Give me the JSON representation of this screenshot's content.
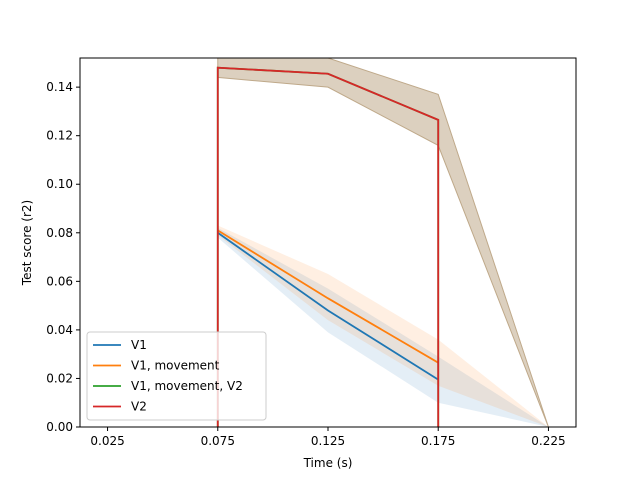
{
  "chart_data": {
    "type": "line",
    "title": "",
    "xlabel": "Time (s)",
    "ylabel": "Test score (r2)",
    "xlim": [
      0.0125,
      0.2375
    ],
    "ylim": [
      0.0,
      0.152
    ],
    "xticks": [
      0.025,
      0.075,
      0.125,
      0.175,
      0.225
    ],
    "xtick_labels": [
      "0.025",
      "0.075",
      "0.125",
      "0.175",
      "0.225"
    ],
    "yticks": [
      0.0,
      0.02,
      0.04,
      0.06,
      0.08,
      0.1,
      0.12,
      0.14
    ],
    "ytick_labels": [
      "0.00",
      "0.02",
      "0.04",
      "0.06",
      "0.08",
      "0.10",
      "0.12",
      "0.14"
    ],
    "grid": false,
    "legend_position": "lower-left",
    "series": [
      {
        "name": "V1",
        "color": "#1f77b4",
        "x": [
          0.075,
          0.125,
          0.175
        ],
        "y": [
          0.08,
          0.048,
          0.0195
        ],
        "band_x": [
          0.075,
          0.125,
          0.175,
          0.225
        ],
        "band_lower": [
          0.078,
          0.039,
          0.01,
          0.0
        ],
        "band_upper": [
          0.082,
          0.057,
          0.029,
          0.0
        ]
      },
      {
        "name": "V1, movement",
        "color": "#ff7f0e",
        "x": [
          0.075,
          0.125,
          0.175
        ],
        "y": [
          0.081,
          0.053,
          0.0265
        ],
        "band_x": [
          0.075,
          0.125,
          0.175,
          0.225
        ],
        "band_lower": [
          0.079,
          0.044,
          0.017,
          0.0
        ],
        "band_upper": [
          0.083,
          0.063,
          0.036,
          0.0
        ]
      },
      {
        "name": "V1, movement, V2",
        "color": "#2ca02c",
        "x": [
          0.075,
          0.075,
          0.125,
          0.175,
          0.175
        ],
        "y": [
          0.0,
          0.148,
          0.1455,
          0.1265,
          0.0
        ],
        "band_x": [],
        "band_lower": [],
        "band_upper": []
      },
      {
        "name": "V2",
        "color": "#d62728",
        "x": [
          0.075,
          0.075,
          0.125,
          0.175,
          0.175
        ],
        "y": [
          0.0,
          0.148,
          0.1455,
          0.1265,
          0.0
        ],
        "band_x": [
          0.075,
          0.125,
          0.175,
          0.225
        ],
        "band_lower": [
          0.144,
          0.14,
          0.116,
          0.0
        ],
        "band_upper": [
          0.152,
          0.152,
          0.137,
          0.0
        ]
      }
    ]
  }
}
